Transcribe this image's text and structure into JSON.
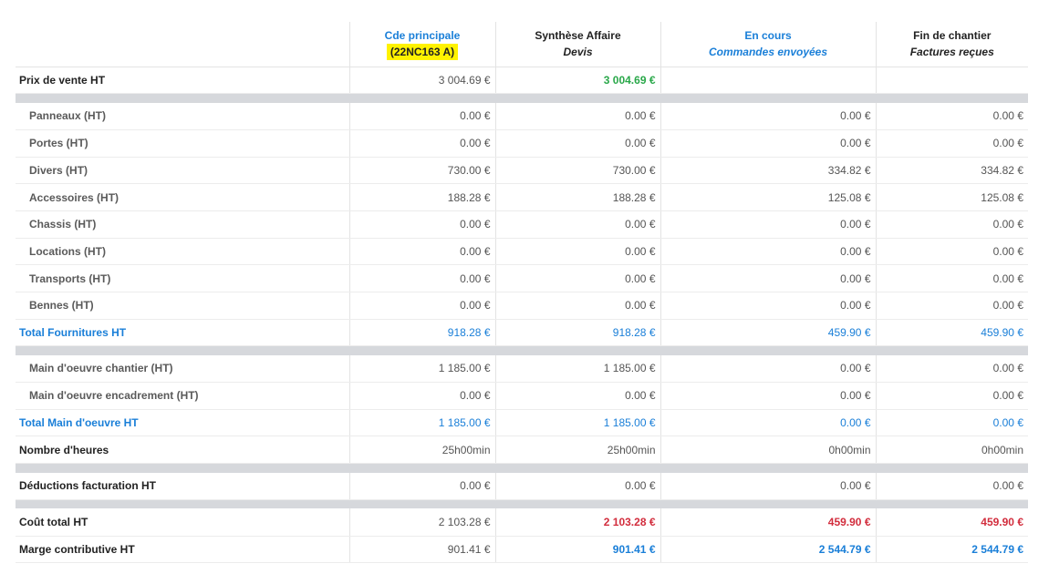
{
  "columns": [
    {
      "title": "Cde principale",
      "subtitle": "(22NC163 A)"
    },
    {
      "title": "Synthèse Affaire",
      "subtitle": "Devis"
    },
    {
      "title": "En cours",
      "subtitle": "Commandes envoyées"
    },
    {
      "title": "Fin de chantier",
      "subtitle": "Factures reçues"
    }
  ],
  "rows": {
    "prix_vente": {
      "label": "Prix de vente HT",
      "values": [
        "3 004.69 €",
        "3 004.69 €",
        "",
        ""
      ]
    },
    "panneaux": {
      "label": "Panneaux (HT)",
      "values": [
        "0.00 €",
        "0.00 €",
        "0.00 €",
        "0.00 €"
      ]
    },
    "portes": {
      "label": "Portes (HT)",
      "values": [
        "0.00 €",
        "0.00 €",
        "0.00 €",
        "0.00 €"
      ]
    },
    "divers": {
      "label": "Divers (HT)",
      "values": [
        "730.00 €",
        "730.00 €",
        "334.82 €",
        "334.82 €"
      ]
    },
    "accessoires": {
      "label": "Accessoires (HT)",
      "values": [
        "188.28 €",
        "188.28 €",
        "125.08 €",
        "125.08 €"
      ]
    },
    "chassis": {
      "label": "Chassis (HT)",
      "values": [
        "0.00 €",
        "0.00 €",
        "0.00 €",
        "0.00 €"
      ]
    },
    "locations": {
      "label": "Locations (HT)",
      "values": [
        "0.00 €",
        "0.00 €",
        "0.00 €",
        "0.00 €"
      ]
    },
    "transports": {
      "label": "Transports (HT)",
      "values": [
        "0.00 €",
        "0.00 €",
        "0.00 €",
        "0.00 €"
      ]
    },
    "bennes": {
      "label": "Bennes (HT)",
      "values": [
        "0.00 €",
        "0.00 €",
        "0.00 €",
        "0.00 €"
      ]
    },
    "total_fournitures": {
      "label": "Total Fournitures HT",
      "values": [
        "918.28 €",
        "918.28 €",
        "459.90 €",
        "459.90 €"
      ]
    },
    "mo_chantier": {
      "label": "Main d'oeuvre chantier (HT)",
      "values": [
        "1 185.00 €",
        "1 185.00 €",
        "0.00 €",
        "0.00 €"
      ]
    },
    "mo_encadrement": {
      "label": "Main d'oeuvre encadrement (HT)",
      "values": [
        "0.00 €",
        "0.00 €",
        "0.00 €",
        "0.00 €"
      ]
    },
    "total_mo": {
      "label": "Total Main d'oeuvre HT",
      "values": [
        "1 185.00 €",
        "1 185.00 €",
        "0.00 €",
        "0.00 €"
      ]
    },
    "heures": {
      "label": "Nombre d'heures",
      "values": [
        "25h00min",
        "25h00min",
        "0h00min",
        "0h00min"
      ]
    },
    "deductions": {
      "label": "Déductions facturation HT",
      "values": [
        "0.00 €",
        "0.00 €",
        "0.00 €",
        "0.00 €"
      ]
    },
    "cout_total": {
      "label": "Coût total HT",
      "values": [
        "2 103.28 €",
        "2 103.28 €",
        "459.90 €",
        "459.90 €"
      ]
    },
    "marge": {
      "label": "Marge contributive HT",
      "values": [
        "901.41 €",
        "901.41 €",
        "2 544.79 €",
        "2 544.79 €"
      ]
    }
  },
  "colors": {
    "accent_blue": "#1a7fd8",
    "positive_green": "#2aa84a",
    "negative_red": "#d22d3d",
    "highlight_yellow": "#fff200",
    "separator_gray": "#d6d8dc"
  }
}
